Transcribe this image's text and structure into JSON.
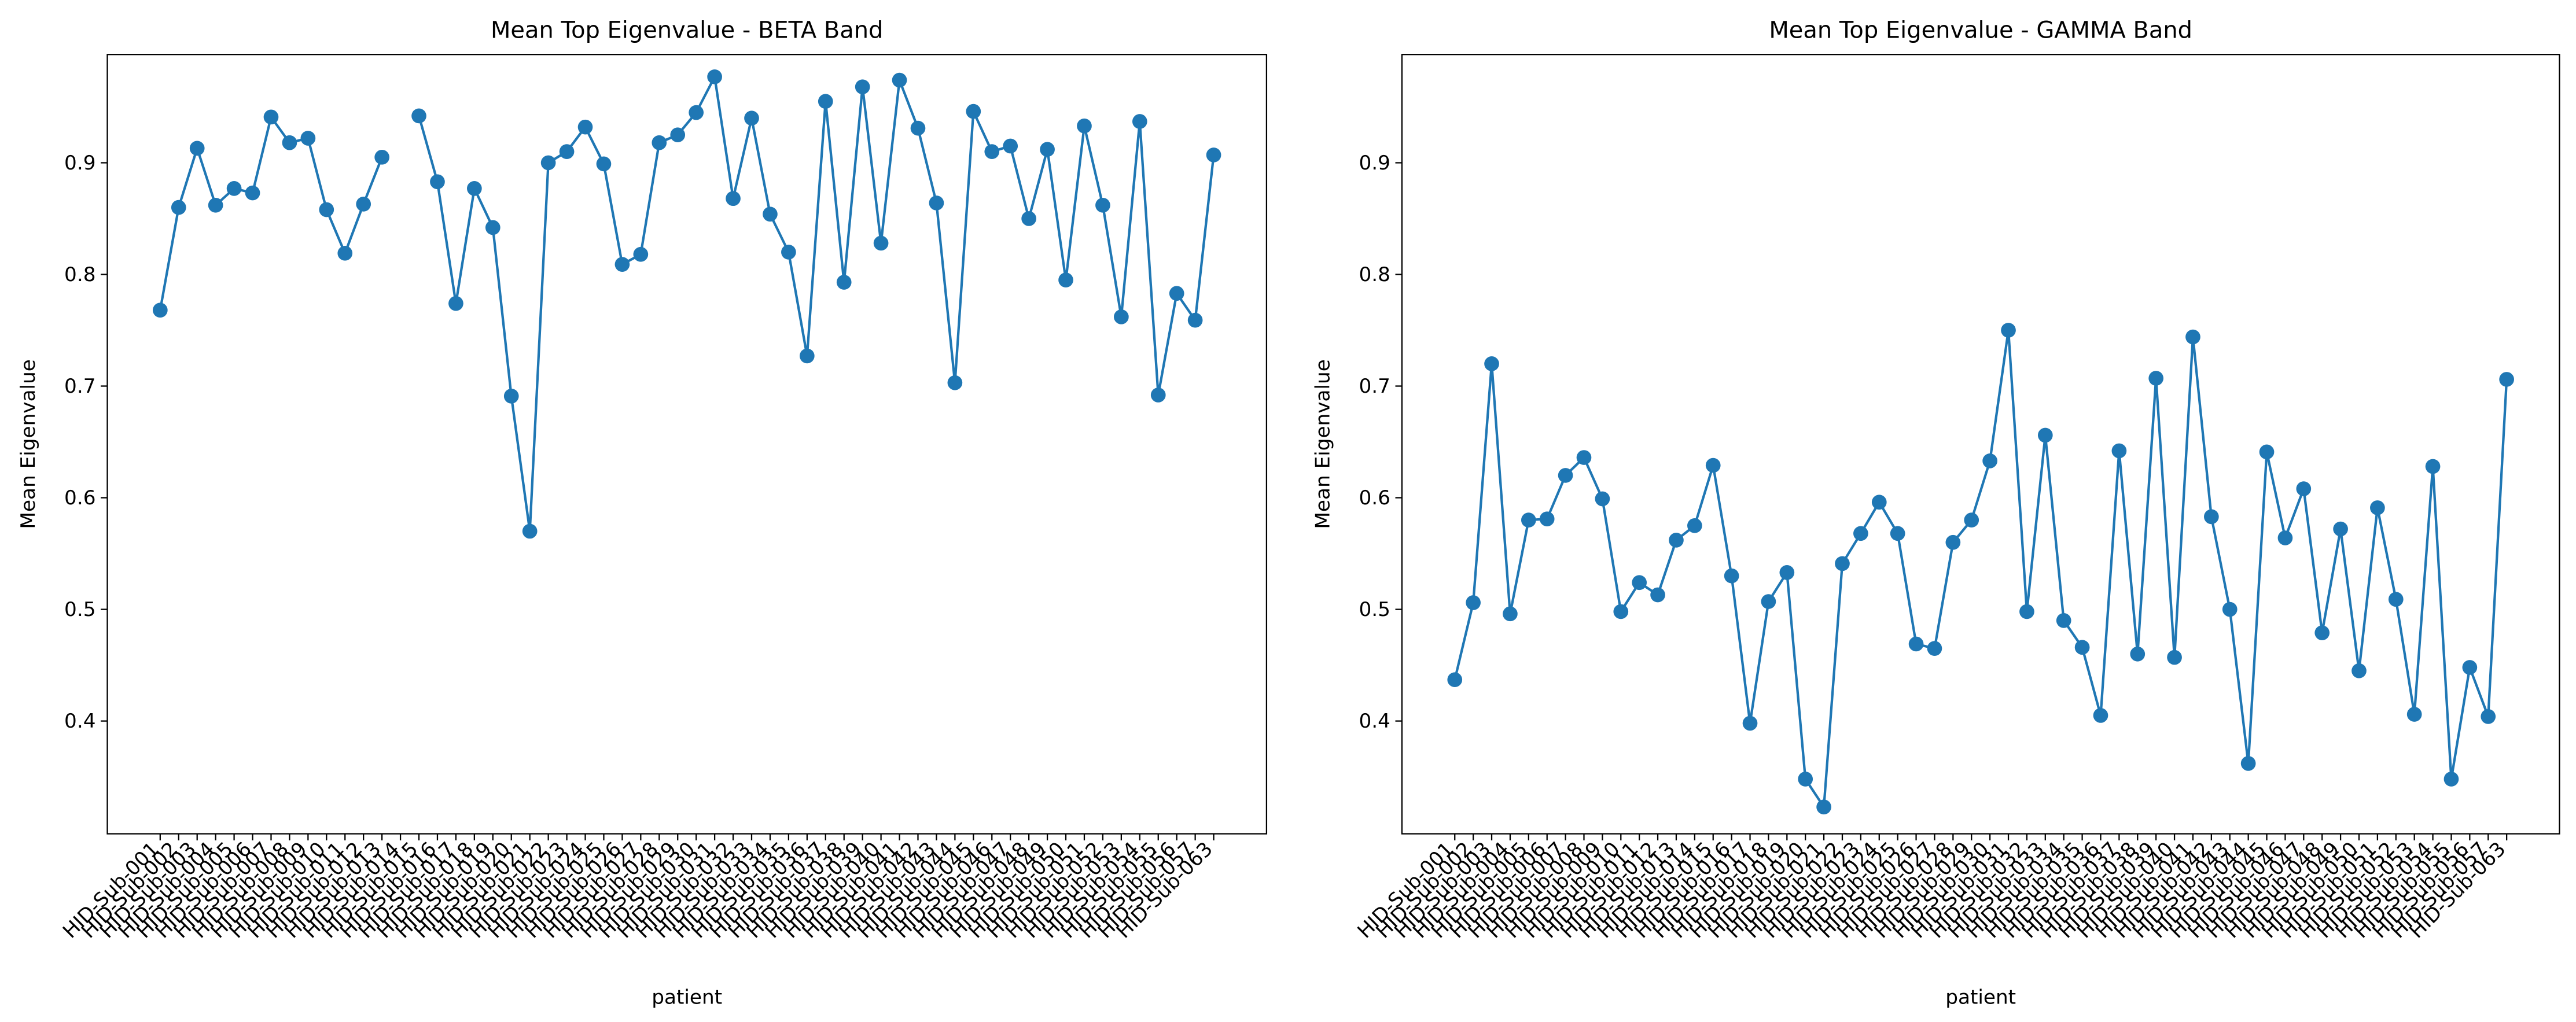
{
  "chart_data": [
    {
      "type": "line",
      "title": "Mean Top Eigenvalue - BETA Band",
      "xlabel": "patient",
      "ylabel": "Mean Eigenvalue",
      "color": "#1f77b4",
      "categories": [
        "HID-Sub-001",
        "HID-Sub-002",
        "HID-Sub-003",
        "HID-Sub-004",
        "HID-Sub-005",
        "HID-Sub-006",
        "HID-Sub-007",
        "HID-Sub-008",
        "HID-Sub-009",
        "HID-Sub-010",
        "HID-Sub-011",
        "HID-Sub-012",
        "HID-Sub-013",
        "HID-Sub-014",
        "HID-Sub-015",
        "HID-Sub-016",
        "HID-Sub-017",
        "HID-Sub-018",
        "HID-Sub-019",
        "HID-Sub-020",
        "HID-Sub-021",
        "HID-Sub-022",
        "HID-Sub-023",
        "HID-Sub-024",
        "HID-Sub-025",
        "HID-Sub-026",
        "HID-Sub-027",
        "HID-Sub-028",
        "HID-Sub-029",
        "HID-Sub-030",
        "HID-Sub-031",
        "HID-Sub-032",
        "HID-Sub-033",
        "HID-Sub-034",
        "HID-Sub-035",
        "HID-Sub-036",
        "HID-Sub-037",
        "HID-Sub-038",
        "HID-Sub-039",
        "HID-Sub-040",
        "HID-Sub-041",
        "HID-Sub-042",
        "HID-Sub-043",
        "HID-Sub-044",
        "HID-Sub-045",
        "HID-Sub-046",
        "HID-Sub-047",
        "HID-Sub-048",
        "HID-Sub-049",
        "HID-Sub-050",
        "HID-Sub-051",
        "HID-Sub-052",
        "HID-Sub-053",
        "HID-Sub-054",
        "HID-Sub-055",
        "HID-Sub-056",
        "HID-Sub-057",
        "HID-Sub-063"
      ],
      "values": [
        0.768,
        0.86,
        0.913,
        0.862,
        0.877,
        0.873,
        0.941,
        0.918,
        0.922,
        0.858,
        0.819,
        0.863,
        0.905,
        null,
        0.942,
        0.883,
        0.774,
        0.877,
        0.842,
        0.691,
        0.57,
        0.9,
        0.91,
        0.932,
        0.899,
        0.809,
        0.818,
        0.918,
        0.925,
        0.945,
        0.977,
        0.868,
        0.94,
        0.854,
        0.82,
        0.727,
        0.955,
        0.793,
        0.968,
        0.828,
        0.974,
        0.931,
        0.864,
        0.703,
        0.946,
        0.91,
        0.915,
        0.85,
        0.912,
        0.795,
        0.933,
        0.862,
        0.762,
        0.937,
        0.692,
        0.783,
        0.759,
        0.907
      ],
      "ylim": [
        0.299,
        0.997
      ],
      "yticks": [
        0.4,
        0.5,
        0.6,
        0.7,
        0.8,
        0.9
      ]
    },
    {
      "type": "line",
      "title": "Mean Top Eigenvalue - GAMMA Band",
      "xlabel": "patient",
      "ylabel": "Mean Eigenvalue",
      "color": "#1f77b4",
      "categories": [
        "HID-Sub-001",
        "HID-Sub-002",
        "HID-Sub-003",
        "HID-Sub-004",
        "HID-Sub-005",
        "HID-Sub-006",
        "HID-Sub-007",
        "HID-Sub-008",
        "HID-Sub-009",
        "HID-Sub-010",
        "HID-Sub-011",
        "HID-Sub-012",
        "HID-Sub-013",
        "HID-Sub-014",
        "HID-Sub-015",
        "HID-Sub-016",
        "HID-Sub-017",
        "HID-Sub-018",
        "HID-Sub-019",
        "HID-Sub-020",
        "HID-Sub-021",
        "HID-Sub-022",
        "HID-Sub-023",
        "HID-Sub-024",
        "HID-Sub-025",
        "HID-Sub-026",
        "HID-Sub-027",
        "HID-Sub-028",
        "HID-Sub-029",
        "HID-Sub-030",
        "HID-Sub-031",
        "HID-Sub-032",
        "HID-Sub-033",
        "HID-Sub-034",
        "HID-Sub-035",
        "HID-Sub-036",
        "HID-Sub-037",
        "HID-Sub-038",
        "HID-Sub-039",
        "HID-Sub-040",
        "HID-Sub-041",
        "HID-Sub-042",
        "HID-Sub-043",
        "HID-Sub-044",
        "HID-Sub-045",
        "HID-Sub-046",
        "HID-Sub-047",
        "HID-Sub-048",
        "HID-Sub-049",
        "HID-Sub-050",
        "HID-Sub-051",
        "HID-Sub-052",
        "HID-Sub-053",
        "HID-Sub-054",
        "HID-Sub-055",
        "HID-Sub-056",
        "HID-Sub-057",
        "HID-Sub-063"
      ],
      "values": [
        0.437,
        0.506,
        0.72,
        0.496,
        0.58,
        0.581,
        0.62,
        0.636,
        0.599,
        0.498,
        0.524,
        0.513,
        0.562,
        0.575,
        0.629,
        0.53,
        0.398,
        0.507,
        0.533,
        0.348,
        0.323,
        0.541,
        0.568,
        0.596,
        0.568,
        0.469,
        0.465,
        0.56,
        0.58,
        0.633,
        0.75,
        0.498,
        0.656,
        0.49,
        0.466,
        0.405,
        0.642,
        0.46,
        0.707,
        0.457,
        0.744,
        0.583,
        0.5,
        0.362,
        0.641,
        0.564,
        0.608,
        0.479,
        0.572,
        0.445,
        0.591,
        0.509,
        0.406,
        0.628,
        0.348,
        0.448,
        0.404,
        0.706
      ],
      "ylim": [
        0.299,
        0.997
      ],
      "yticks": [
        0.4,
        0.5,
        0.6,
        0.7,
        0.8,
        0.9
      ]
    }
  ]
}
